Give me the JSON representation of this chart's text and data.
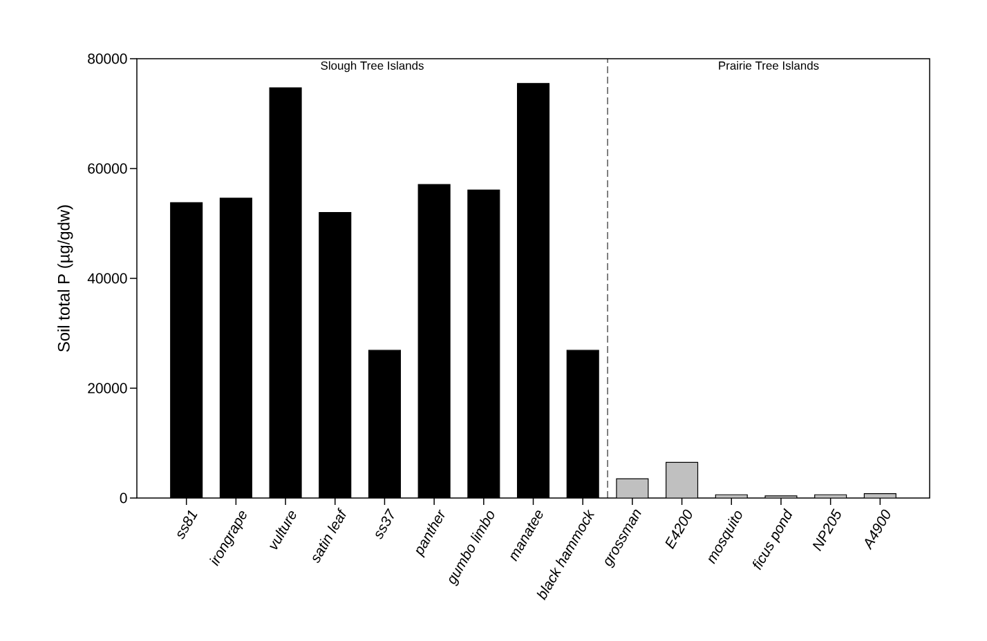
{
  "chart_data": {
    "type": "bar",
    "ylabel": "Soil total P (µg/gdw)",
    "categories": [
      "ss81",
      "irongrape",
      "vulture",
      "satin leaf",
      "ss37",
      "panther",
      "gumbo limbo",
      "manatee",
      "black hammock",
      "grossman",
      "E4200",
      "mosquito",
      "ficus pond",
      "NP205",
      "A4900"
    ],
    "values": [
      53800,
      54600,
      74700,
      52000,
      26900,
      57100,
      56100,
      75500,
      26900,
      3500,
      6500,
      600,
      400,
      600,
      800
    ],
    "colors": [
      "#000000",
      "#000000",
      "#000000",
      "#000000",
      "#000000",
      "#000000",
      "#000000",
      "#000000",
      "#000000",
      "#c0c0c0",
      "#c0c0c0",
      "#c0c0c0",
      "#c0c0c0",
      "#c0c0c0",
      "#c0c0c0"
    ],
    "ylim": [
      0,
      80000
    ],
    "yticks": [
      0,
      20000,
      40000,
      60000,
      80000
    ],
    "annotations": [
      "Slough Tree Islands",
      "Prairie Tree Islands"
    ]
  }
}
